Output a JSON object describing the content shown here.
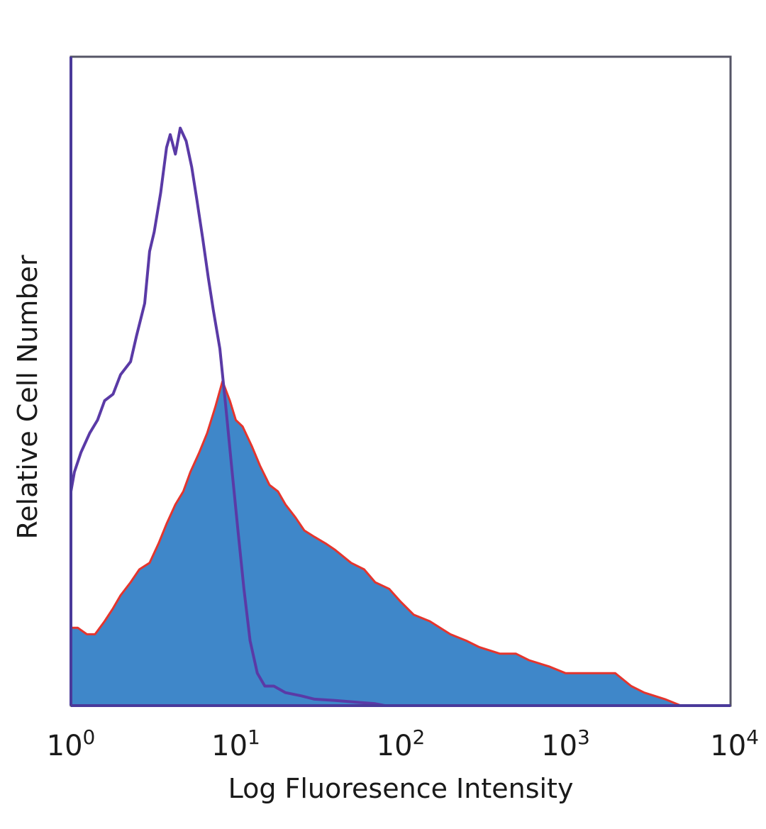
{
  "chart_data": {
    "type": "area",
    "title": "",
    "xlabel": "Log Fluoresence Intensity",
    "ylabel": "Relative Cell Number",
    "x_scale": "log",
    "xlim": [
      1,
      10000
    ],
    "ylim": [
      0,
      100
    ],
    "y_ticks_shown": false,
    "grid": false,
    "x_ticks": [
      {
        "value": 1,
        "base": "10",
        "exp": "0"
      },
      {
        "value": 10,
        "base": "10",
        "exp": "1"
      },
      {
        "value": 100,
        "base": "10",
        "exp": "2"
      },
      {
        "value": 1000,
        "base": "10",
        "exp": "3"
      },
      {
        "value": 10000,
        "base": "10",
        "exp": "4"
      }
    ],
    "series": [
      {
        "role": "control",
        "style": "line",
        "color": "#5a3aa6",
        "x": [
          1,
          1.05,
          1.15,
          1.3,
          1.45,
          1.6,
          1.8,
          2.0,
          2.3,
          2.5,
          2.8,
          3.0,
          3.2,
          3.5,
          3.8,
          4.0,
          4.3,
          4.6,
          5.0,
          5.4,
          5.8,
          6.3,
          6.8,
          7.3,
          8.0,
          8.7,
          9.5,
          10.3,
          11.2,
          12.2,
          13.5,
          15,
          17,
          20,
          25,
          30,
          40,
          55,
          70,
          80
        ],
        "y": [
          33,
          36,
          39,
          42,
          44,
          47,
          48,
          51,
          53,
          57,
          62,
          70,
          73,
          79,
          86,
          88,
          85,
          89,
          87,
          83,
          78,
          72,
          66,
          61,
          55,
          46,
          36,
          27,
          18,
          10,
          5,
          3,
          3,
          2,
          1.5,
          1,
          0.8,
          0.5,
          0.3,
          0
        ]
      },
      {
        "role": "stained",
        "style": "filled",
        "fill": "#3f87c9",
        "edge_color": "#e5352d",
        "x": [
          1,
          1.1,
          1.25,
          1.4,
          1.6,
          1.8,
          2.0,
          2.3,
          2.6,
          3.0,
          3.4,
          3.8,
          4.3,
          4.8,
          5.3,
          6.0,
          6.7,
          7.5,
          8.3,
          9.2,
          10,
          11,
          12.5,
          14,
          16,
          18,
          20,
          23,
          26,
          30,
          35,
          40,
          50,
          60,
          70,
          85,
          100,
          120,
          150,
          200,
          250,
          300,
          400,
          500,
          600,
          800,
          1000,
          1300,
          1600,
          2000,
          2500,
          3000,
          4000,
          5000
        ],
        "y": [
          12,
          12,
          11,
          11,
          13,
          15,
          17,
          19,
          21,
          22,
          25,
          28,
          31,
          33,
          36,
          39,
          42,
          46,
          50,
          47,
          44,
          43,
          40,
          37,
          34,
          33,
          31,
          29,
          27,
          26,
          25,
          24,
          22,
          21,
          19,
          18,
          16,
          14,
          13,
          11,
          10,
          9,
          8,
          8,
          7,
          6,
          5,
          5,
          5,
          5,
          3,
          2,
          1,
          0
        ]
      }
    ]
  }
}
